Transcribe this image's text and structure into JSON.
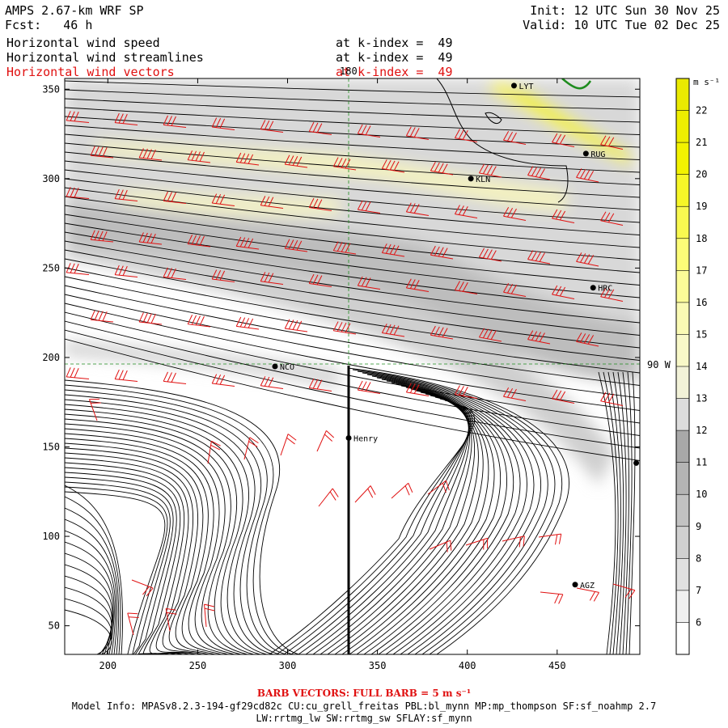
{
  "header": {
    "model_title": "AMPS 2.67-km WRF SP",
    "forecast": "Fcst:   46 h",
    "init": "Init: 12 UTC Sun 30 Nov 25",
    "valid": "Valid: 10 UTC Tue 02 Dec 25",
    "field1": "Horizontal wind speed",
    "field2": "Horizontal wind streamlines",
    "field3": "Horizontal wind vectors",
    "level1": "at k-index =  49",
    "level2": "at k-index =  49",
    "level3": "at k-index =  49"
  },
  "map": {
    "x_ticks": [
      "200",
      "250",
      "300",
      "350",
      "400",
      "450"
    ],
    "y_ticks": [
      "50",
      "100",
      "150",
      "200",
      "250",
      "300",
      "350"
    ],
    "x_range": [
      176,
      496
    ],
    "y_range": [
      34,
      356
    ],
    "meridian_label": "180",
    "parallel_label": "90 W",
    "stations": [
      {
        "name": "NCO",
        "x": 293,
        "y": 195
      },
      {
        "name": "Henry",
        "x": 334,
        "y": 155
      },
      {
        "name": "KLN",
        "x": 402,
        "y": 300
      },
      {
        "name": "RUG",
        "x": 466,
        "y": 314
      },
      {
        "name": "HRC",
        "x": 470,
        "y": 239
      },
      {
        "name": "AGZ",
        "x": 460,
        "y": 73
      },
      {
        "name": "LYT",
        "x": 426,
        "y": 352
      },
      {
        "name": "",
        "x": 494,
        "y": 141
      }
    ]
  },
  "colorbar": {
    "unit": "m s⁻¹",
    "labels": [
      "6",
      "7",
      "8",
      "9",
      "10",
      "11",
      "12",
      "13",
      "14",
      "15",
      "16",
      "17",
      "18",
      "19",
      "20",
      "21",
      "22"
    ],
    "colors": [
      "#ffffff",
      "#f0f0f0",
      "#e0e0e0",
      "#d0d0d0",
      "#c2c2c2",
      "#b4b4b4",
      "#a8a8a8",
      "#dcdcdc",
      "#f2f2d8",
      "#f8f8c8",
      "#fafab4",
      "#fcfc98",
      "#fcfc78",
      "#f8f850",
      "#f6f628",
      "#f2f200",
      "#eeee00",
      "#eaea00"
    ]
  },
  "footer": {
    "barb_note": "BARB VECTORS:  FULL BARB = 5 m s⁻¹",
    "model_info": "Model Info: MPASv8.2.3-194-gf29cd82c CU:cu_grell_freitas PBL:bl_mynn MP:mp_thompson SF:sf_noahmp 2.7",
    "model_info2": "LW:rrtmg_lw SW:rrtmg_sw SFLAY:sf_mynn"
  }
}
